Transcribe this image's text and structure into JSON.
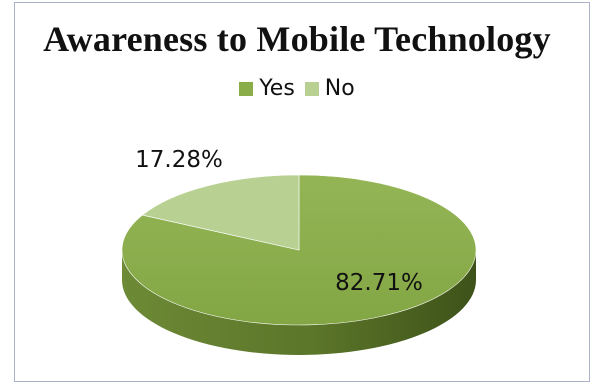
{
  "chart_data": {
    "type": "pie",
    "title": "Awareness to Mobile Technology",
    "categories": [
      "Yes",
      "No"
    ],
    "values": [
      82.71,
      17.28
    ],
    "data_labels": [
      "82.71%",
      "17.28%"
    ],
    "colors": [
      "#8aad4a",
      "#b8d192"
    ],
    "legend_position": "top",
    "style": "3d-pie"
  }
}
